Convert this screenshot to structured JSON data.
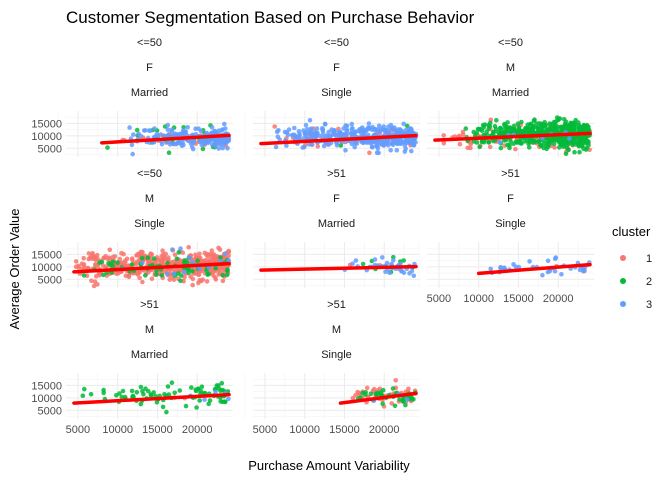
{
  "chart_data": {
    "type": "scatter",
    "title": "Customer Segmentation Based on Purchase Behavior",
    "xlabel": "Purchase Amount Variability",
    "ylabel": "Average Order Value",
    "xlim": [
      3500,
      24500
    ],
    "ylim": [
      1500,
      20000
    ],
    "x_ticks": [
      5000,
      10000,
      15000,
      20000
    ],
    "y_ticks": [
      5000,
      10000,
      15000
    ],
    "legend": {
      "title": "cluster",
      "position": "right",
      "entries": [
        {
          "label": "1",
          "color": "#F8766D"
        },
        {
          "label": "2",
          "color": "#00BA38"
        },
        {
          "label": "3",
          "color": "#619CFF"
        }
      ]
    },
    "trend_color": "#FF0000",
    "grid": true,
    "facets": [
      {
        "strip": [
          "<=50",
          "F",
          "Married"
        ],
        "trend": {
          "x": [
            8000,
            24000
          ],
          "y": [
            7200,
            10200
          ]
        },
        "clusters": [
          {
            "cluster": "1",
            "n": 40,
            "x_range": [
              10000,
              24000
            ],
            "y_mean": 8800,
            "y_sd": 1500
          },
          {
            "cluster": "2",
            "n": 25,
            "x_range": [
              8000,
              24000
            ],
            "y_mean": 9500,
            "y_sd": 2600
          },
          {
            "cluster": "3",
            "n": 180,
            "x_range": [
              11000,
              24000
            ],
            "y_mean": 9300,
            "y_sd": 1900
          }
        ]
      },
      {
        "strip": [
          "<=50",
          "F",
          "Single"
        ],
        "trend": {
          "x": [
            4500,
            24000
          ],
          "y": [
            6900,
            10100
          ]
        },
        "clusters": [
          {
            "cluster": "1",
            "n": 50,
            "x_range": [
              6000,
              24000
            ],
            "y_mean": 8300,
            "y_sd": 2000
          },
          {
            "cluster": "2",
            "n": 6,
            "x_range": [
              12000,
              24000
            ],
            "y_mean": 9000,
            "y_sd": 1800
          },
          {
            "cluster": "3",
            "n": 380,
            "x_range": [
              6000,
              24000
            ],
            "y_mean": 9500,
            "y_sd": 2200
          }
        ]
      },
      {
        "strip": [
          "<=50",
          "M",
          "Married"
        ],
        "trend": {
          "x": [
            4500,
            24000
          ],
          "y": [
            8300,
            11000
          ]
        },
        "clusters": [
          {
            "cluster": "1",
            "n": 120,
            "x_range": [
              4500,
              24000
            ],
            "y_mean": 9200,
            "y_sd": 2300
          },
          {
            "cluster": "2",
            "n": 480,
            "x_range": [
              8000,
              24000
            ],
            "y_mean": 10500,
            "y_sd": 2700
          },
          {
            "cluster": "3",
            "n": 8,
            "x_range": [
              10000,
              24000
            ],
            "y_mean": 10000,
            "y_sd": 1500
          }
        ]
      },
      {
        "strip": [
          "<=50",
          "M",
          "Single"
        ],
        "trend": {
          "x": [
            4500,
            24000
          ],
          "y": [
            8000,
            11300
          ]
        },
        "clusters": [
          {
            "cluster": "1",
            "n": 520,
            "x_range": [
              4500,
              24000
            ],
            "y_mean": 10600,
            "y_sd": 2700
          },
          {
            "cluster": "2",
            "n": 70,
            "x_range": [
              5000,
              24000
            ],
            "y_mean": 9600,
            "y_sd": 2500
          },
          {
            "cluster": "3",
            "n": 15,
            "x_range": [
              10000,
              24000
            ],
            "y_mean": 11500,
            "y_sd": 3000
          }
        ]
      },
      {
        "strip": [
          ">51",
          "F",
          "Married"
        ],
        "trend": {
          "x": [
            4500,
            24000
          ],
          "y": [
            8700,
            10100
          ]
        },
        "clusters": [
          {
            "cluster": "1",
            "n": 3,
            "x_range": [
              14000,
              23000
            ],
            "y_mean": 9800,
            "y_sd": 1500
          },
          {
            "cluster": "2",
            "n": 8,
            "x_range": [
              14000,
              24000
            ],
            "y_mean": 10800,
            "y_sd": 2000
          },
          {
            "cluster": "3",
            "n": 40,
            "x_range": [
              14000,
              24000
            ],
            "y_mean": 9800,
            "y_sd": 1900
          }
        ]
      },
      {
        "strip": [
          ">51",
          "F",
          "Single"
        ],
        "trend": {
          "x": [
            10000,
            24000
          ],
          "y": [
            7400,
            10900
          ]
        },
        "clusters": [
          {
            "cluster": "1",
            "n": 3,
            "x_range": [
              16000,
              24000
            ],
            "y_mean": 10000,
            "y_sd": 1200
          },
          {
            "cluster": "2",
            "n": 0,
            "x_range": [
              10000,
              24000
            ],
            "y_mean": 9000,
            "y_sd": 1000
          },
          {
            "cluster": "3",
            "n": 35,
            "x_range": [
              10000,
              24000
            ],
            "y_mean": 9600,
            "y_sd": 1700
          }
        ]
      },
      {
        "strip": [
          ">51",
          "M",
          "Married"
        ],
        "trend": {
          "x": [
            4500,
            24000
          ],
          "y": [
            7900,
            11300
          ]
        },
        "clusters": [
          {
            "cluster": "1",
            "n": 4,
            "x_range": [
              15000,
              24000
            ],
            "y_mean": 10000,
            "y_sd": 1500
          },
          {
            "cluster": "2",
            "n": 90,
            "x_range": [
              4500,
              24000
            ],
            "y_mean": 10600,
            "y_sd": 2100
          },
          {
            "cluster": "3",
            "n": 5,
            "x_range": [
              16000,
              24000
            ],
            "y_mean": 10000,
            "y_sd": 1500
          }
        ]
      },
      {
        "strip": [
          ">51",
          "M",
          "Single"
        ],
        "trend": {
          "x": [
            14500,
            24000
          ],
          "y": [
            7900,
            11800
          ]
        },
        "clusters": [
          {
            "cluster": "1",
            "n": 45,
            "x_range": [
              15000,
              24000
            ],
            "y_mean": 10800,
            "y_sd": 2000
          },
          {
            "cluster": "2",
            "n": 40,
            "x_range": [
              14500,
              24000
            ],
            "y_mean": 10300,
            "y_sd": 1900
          },
          {
            "cluster": "3",
            "n": 3,
            "x_range": [
              16000,
              23000
            ],
            "y_mean": 10000,
            "y_sd": 1500
          }
        ]
      }
    ]
  }
}
